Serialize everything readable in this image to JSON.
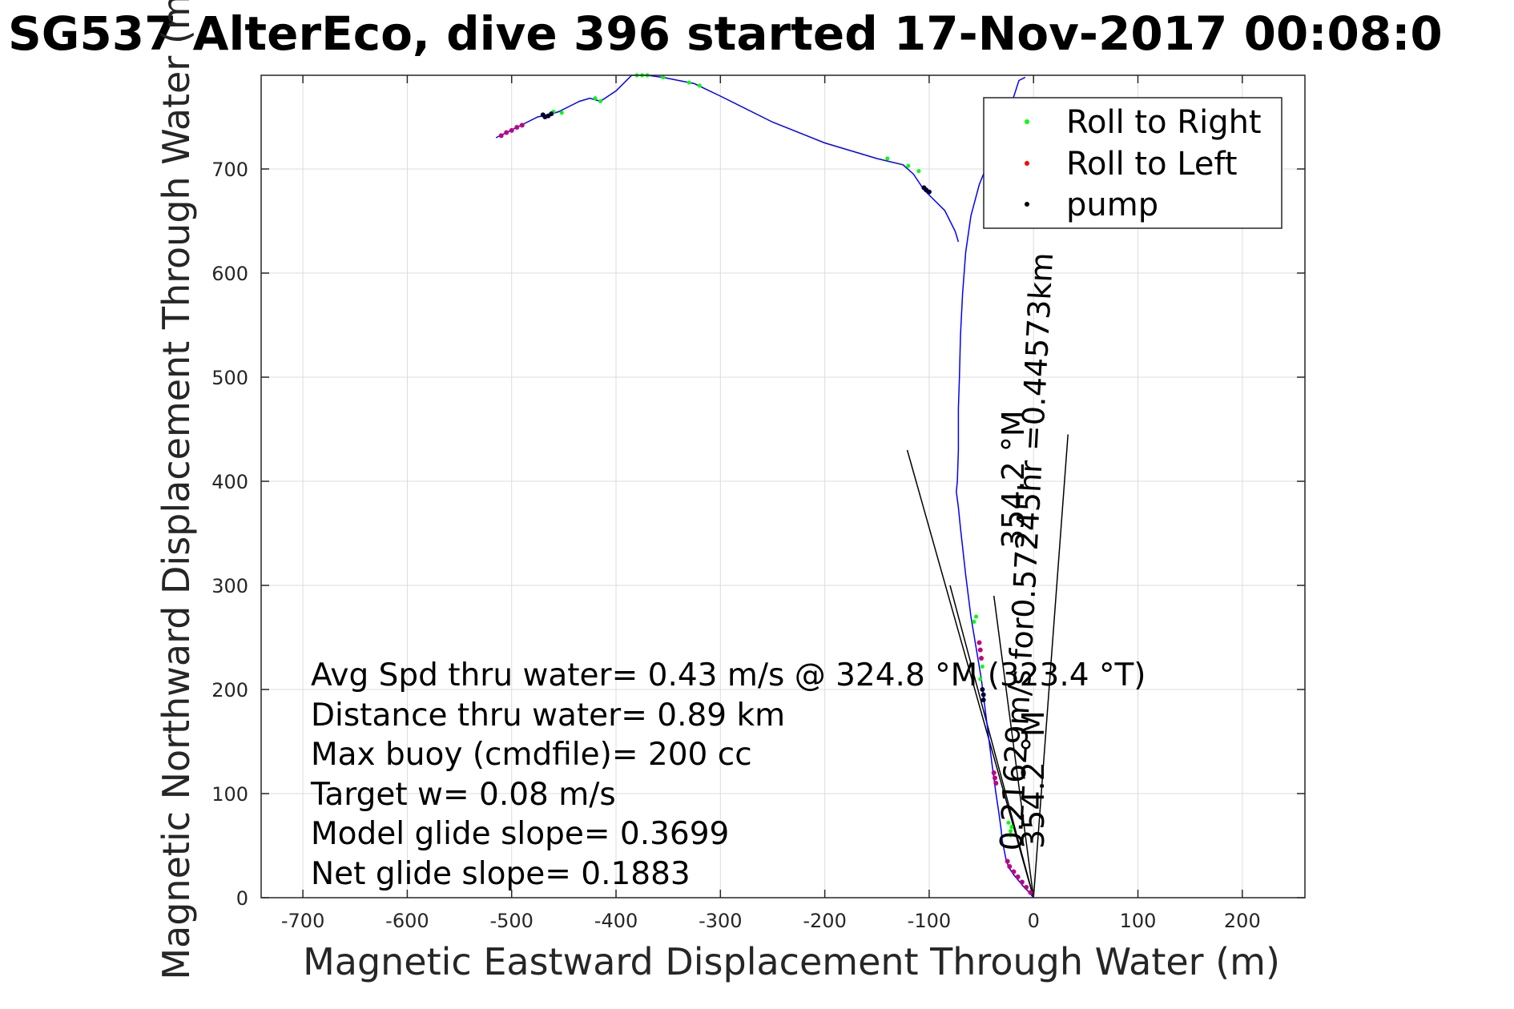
{
  "chart_data": {
    "type": "line",
    "title": "SG537 AlterEco, dive 396 started 17-Nov-2017 00:08:0",
    "xlabel": "Magnetic Eastward Displacement Through Water (m)",
    "ylabel": "Magnetic Northward Displacement Through Water (m",
    "xlim": [
      -740,
      260
    ],
    "ylim": [
      0,
      790
    ],
    "xticks": [
      -700,
      -600,
      -500,
      -400,
      -300,
      -200,
      -100,
      0,
      100,
      200
    ],
    "yticks": [
      0,
      100,
      200,
      300,
      400,
      500,
      600,
      700
    ],
    "xtick_labels": [
      "-700",
      "-600",
      "-500",
      "-400",
      "-300",
      "-200",
      "-100",
      "0",
      "100",
      "200"
    ],
    "ytick_labels": [
      "0",
      "100",
      "200",
      "300",
      "400",
      "500",
      "600",
      "700"
    ],
    "grid": true,
    "legend_position": "top-right",
    "legend": [
      "Roll to Right",
      "Roll to Left",
      "pump"
    ],
    "colors": {
      "track": "#0000ff",
      "roll_right": "#00ff00",
      "roll_left": "#ff0000",
      "pump": "#000000",
      "roll_marker_mix": "#c0007f"
    },
    "track": {
      "name": "",
      "x": [
        0,
        -4,
        -9,
        -14,
        -19,
        -23,
        -26,
        -28,
        -30,
        -31,
        -33,
        -36,
        -40,
        -45,
        -50,
        -55,
        -60,
        -65,
        -70,
        -72,
        -74,
        -73,
        -72,
        -72,
        -71,
        -70,
        -68,
        -65,
        -60,
        -52,
        -42,
        -32,
        -22,
        -14,
        -8
      ],
      "y": [
        0,
        5,
        10,
        16,
        22,
        28,
        35,
        45,
        55,
        65,
        80,
        100,
        130,
        170,
        210,
        240,
        270,
        310,
        355,
        375,
        390,
        400,
        430,
        470,
        500,
        540,
        580,
        620,
        655,
        685,
        710,
        730,
        760,
        785,
        788
      ]
    },
    "track_top": {
      "x": [
        -515,
        -505,
        -495,
        -485,
        -475,
        -465,
        -455,
        -445,
        -435,
        -425,
        -415,
        -400,
        -385,
        -370,
        -355,
        -340,
        -325,
        -300,
        -250,
        -200,
        -150,
        -125,
        -115,
        -105,
        -95,
        -85,
        -75,
        -72
      ],
      "y": [
        730,
        735,
        740,
        745,
        750,
        752,
        755,
        760,
        765,
        768,
        765,
        775,
        790,
        790,
        788,
        785,
        782,
        770,
        745,
        725,
        710,
        704,
        695,
        680,
        670,
        660,
        640,
        630
      ]
    },
    "roll_right": {
      "x": [
        -22,
        -22,
        -21,
        -24,
        -49,
        -57,
        -55,
        -51,
        -140,
        -120,
        -110,
        -380,
        -375,
        -370,
        -330,
        -320,
        -420,
        -415,
        -460,
        -452,
        -355
      ],
      "y": [
        60,
        64,
        68,
        72,
        222,
        265,
        270,
        210,
        710,
        703,
        698,
        790,
        790,
        790,
        783,
        780,
        768,
        765,
        755,
        754,
        788
      ]
    },
    "roll_left": {
      "x": [
        -3,
        -7,
        -11,
        -15,
        -19,
        -23,
        -25,
        -36,
        -37,
        -38,
        -50,
        -51,
        -52,
        -510,
        -505,
        -500,
        -495,
        -490
      ],
      "y": [
        5,
        10,
        15,
        20,
        25,
        30,
        35,
        110,
        115,
        120,
        230,
        238,
        245,
        732,
        735,
        737,
        740,
        742
      ]
    },
    "pump": {
      "x": [
        -48,
        -48,
        -49,
        -105,
        -103,
        -100,
        -470,
        -468,
        -465,
        -462
      ],
      "y": [
        190,
        195,
        200,
        682,
        680,
        678,
        752,
        750,
        751,
        753
      ]
    },
    "heading_lines": [
      {
        "x": [
          0,
          -121
        ],
        "y": [
          0,
          430
        ]
      },
      {
        "x": [
          0,
          33
        ],
        "y": [
          0,
          445
        ]
      },
      {
        "x": [
          0,
          -38
        ],
        "y": [
          0,
          290
        ]
      },
      {
        "x": [
          0,
          -80
        ],
        "y": [
          0,
          300
        ]
      }
    ],
    "annotations": {
      "avg_speed": "Avg Spd thru water=  0.43 m/s @ 324.8 °M (323.4 °T)",
      "distance": "Distance thru water=  0.89 km",
      "max_buoy": "Max buoy (cmdfile)= 200 cc",
      "target_w": "Target w= 0.08 m/s",
      "model_glide": "Model glide slope= 0.3699",
      "net_glide": "Net glide slope= 0.1883",
      "rot_current": "0.21629m/s for0.57245hr =0.44573km",
      "rot_head_upper": "354.2 °M",
      "rot_head_lower": "354.2 °M"
    }
  }
}
